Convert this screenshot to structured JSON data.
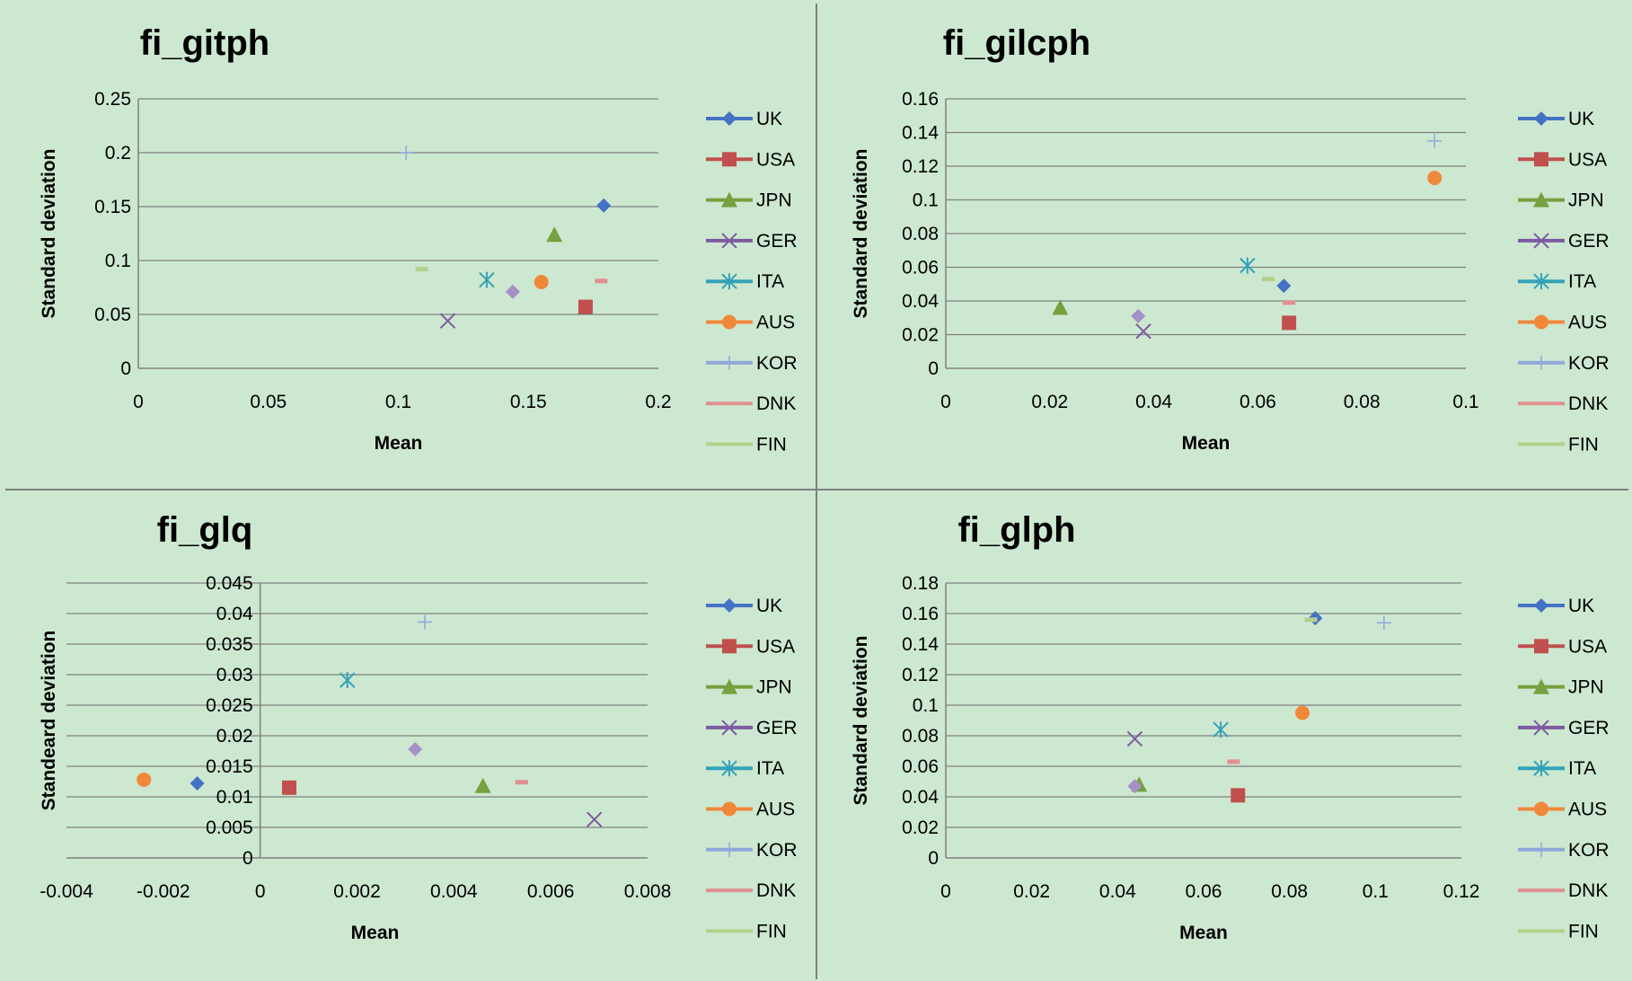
{
  "series_styles": [
    {
      "name": "UK",
      "color": "#4472c4",
      "marker": "diamond"
    },
    {
      "name": "USA",
      "color": "#c0504d",
      "marker": "square"
    },
    {
      "name": "JPN",
      "color": "#77a040",
      "marker": "triangle"
    },
    {
      "name": "GER",
      "color": "#7d5aa0",
      "marker": "x"
    },
    {
      "name": "ITA",
      "color": "#33a2b8",
      "marker": "star"
    },
    {
      "name": "AUS",
      "color": "#f0883a",
      "marker": "circle"
    },
    {
      "name": "KOR",
      "color": "#8fa8dc",
      "marker": "plus"
    },
    {
      "name": "DNK",
      "color": "#e09090",
      "marker": "dash"
    },
    {
      "name": "FIN",
      "color": "#b4d08c",
      "marker": "dash"
    }
  ],
  "chart_data": [
    {
      "type": "scatter",
      "title": "fi_gitph",
      "xlabel": "Mean",
      "ylabel": "Standard deviation",
      "xlim": [
        0,
        0.2
      ],
      "ylim": [
        0,
        0.25
      ],
      "xticks": [
        "0",
        "0.05",
        "0.1",
        "0.15",
        "0.2"
      ],
      "yticks": [
        "0",
        "0.05",
        "0.1",
        "0.15",
        "0.2",
        "0.25"
      ],
      "grid": true,
      "legend": "right",
      "series": [
        {
          "name": "UK",
          "x": 0.179,
          "y": 0.151
        },
        {
          "name": "USA",
          "x": 0.172,
          "y": 0.057
        },
        {
          "name": "JPN",
          "x": 0.16,
          "y": 0.124
        },
        {
          "name": "GER",
          "x": 0.119,
          "y": 0.044
        },
        {
          "name": "ITA",
          "x": 0.134,
          "y": 0.082
        },
        {
          "name": "AUS",
          "x": 0.155,
          "y": 0.08
        },
        {
          "name": "KOR",
          "x": 0.103,
          "y": 0.2
        },
        {
          "name": "DNK",
          "x": 0.178,
          "y": 0.081
        },
        {
          "name": "FIN",
          "x": 0.109,
          "y": 0.092
        }
      ],
      "extra_points": [
        {
          "x": 0.144,
          "y": 0.071,
          "color": "#a590c8",
          "marker": "diamond"
        }
      ]
    },
    {
      "type": "scatter",
      "title": "fi_gilcph",
      "xlabel": "Mean",
      "ylabel": "Standard deviation",
      "xlim": [
        0,
        0.1
      ],
      "ylim": [
        0,
        0.16
      ],
      "xticks": [
        "0",
        "0.02",
        "0.04",
        "0.06",
        "0.08",
        "0.1"
      ],
      "yticks": [
        "0",
        "0.02",
        "0.04",
        "0.06",
        "0.08",
        "0.1",
        "0.12",
        "0.14",
        "0.16"
      ],
      "grid": true,
      "legend": "right",
      "series": [
        {
          "name": "UK",
          "x": 0.065,
          "y": 0.049
        },
        {
          "name": "USA",
          "x": 0.066,
          "y": 0.027
        },
        {
          "name": "JPN",
          "x": 0.022,
          "y": 0.036
        },
        {
          "name": "GER",
          "x": 0.038,
          "y": 0.022
        },
        {
          "name": "ITA",
          "x": 0.058,
          "y": 0.061
        },
        {
          "name": "AUS",
          "x": 0.094,
          "y": 0.113
        },
        {
          "name": "KOR",
          "x": 0.094,
          "y": 0.135
        },
        {
          "name": "DNK",
          "x": 0.066,
          "y": 0.039
        },
        {
          "name": "FIN",
          "x": 0.062,
          "y": 0.053
        }
      ],
      "extra_points": [
        {
          "x": 0.037,
          "y": 0.031,
          "color": "#a590c8",
          "marker": "diamond"
        }
      ]
    },
    {
      "type": "scatter",
      "title": "fi_glq",
      "xlabel": "Mean",
      "ylabel": "Standeard deviation",
      "xlim": [
        -0.004,
        0.008
      ],
      "ylim": [
        0,
        0.045
      ],
      "xticks": [
        "-0.004",
        "-0.002",
        "0",
        "0.002",
        "0.004",
        "0.006",
        "0.008"
      ],
      "yticks": [
        "0",
        "0.005",
        "0.01",
        "0.015",
        "0.02",
        "0.025",
        "0.03",
        "0.035",
        "0.04",
        "0.045"
      ],
      "grid": true,
      "legend": "right",
      "series": [
        {
          "name": "UK",
          "x": -0.0013,
          "y": 0.0122
        },
        {
          "name": "USA",
          "x": 0.0006,
          "y": 0.0115
        },
        {
          "name": "JPN",
          "x": 0.0046,
          "y": 0.0118
        },
        {
          "name": "GER",
          "x": 0.0069,
          "y": 0.0063
        },
        {
          "name": "ITA",
          "x": 0.0018,
          "y": 0.0291
        },
        {
          "name": "AUS",
          "x": -0.0024,
          "y": 0.0128
        },
        {
          "name": "KOR",
          "x": 0.0034,
          "y": 0.0386
        },
        {
          "name": "DNK",
          "x": 0.0054,
          "y": 0.0124
        },
        {
          "name": "FIN",
          "x": null,
          "y": null
        }
      ],
      "extra_points": [
        {
          "x": 0.0032,
          "y": 0.0178,
          "color": "#a590c8",
          "marker": "diamond"
        }
      ]
    },
    {
      "type": "scatter",
      "title": "fi_glph",
      "xlabel": "Mean",
      "ylabel": "Standard deviation",
      "xlim": [
        0,
        0.12
      ],
      "ylim": [
        0,
        0.18
      ],
      "xticks": [
        "0",
        "0.02",
        "0.04",
        "0.06",
        "0.08",
        "0.1",
        "0.12"
      ],
      "yticks": [
        "0",
        "0.02",
        "0.04",
        "0.06",
        "0.08",
        "0.1",
        "0.12",
        "0.14",
        "0.16",
        "0.18"
      ],
      "grid": true,
      "legend": "right",
      "series": [
        {
          "name": "UK",
          "x": 0.086,
          "y": 0.157
        },
        {
          "name": "USA",
          "x": 0.068,
          "y": 0.041
        },
        {
          "name": "JPN",
          "x": 0.045,
          "y": 0.048
        },
        {
          "name": "GER",
          "x": 0.044,
          "y": 0.078
        },
        {
          "name": "ITA",
          "x": 0.064,
          "y": 0.084
        },
        {
          "name": "AUS",
          "x": 0.083,
          "y": 0.095
        },
        {
          "name": "KOR",
          "x": 0.102,
          "y": 0.154
        },
        {
          "name": "DNK",
          "x": 0.067,
          "y": 0.063
        },
        {
          "name": "FIN",
          "x": 0.085,
          "y": 0.156
        }
      ],
      "extra_points": [
        {
          "x": 0.044,
          "y": 0.047,
          "color": "#a590c8",
          "marker": "diamond"
        }
      ]
    }
  ]
}
